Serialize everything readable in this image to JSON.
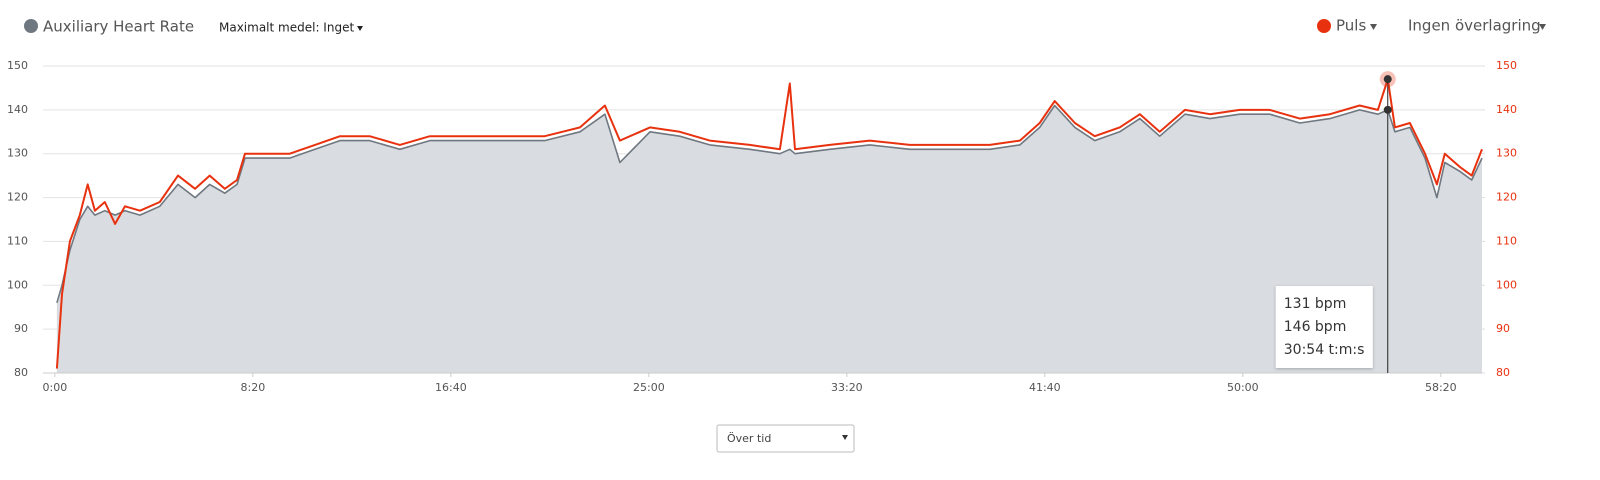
{
  "chart_data": {
    "type": "line",
    "controls": {
      "average": "Maximalt medel: Inget",
      "overlay": "Ingen överlagring",
      "mode": "Över tid"
    },
    "x": [
      5,
      18,
      38,
      63,
      83,
      101,
      126,
      152,
      177,
      215,
      265,
      311,
      354,
      391,
      429,
      460,
      480,
      530,
      593,
      657,
      720,
      795,
      871,
      947,
      1048,
      1149,
      1237,
      1326,
      1389,
      1427,
      1503,
      1578,
      1654,
      1755,
      1831,
      1856,
      1869,
      1957,
      2058,
      2159,
      2260,
      2361,
      2437,
      2487,
      2525,
      2576,
      2626,
      2689,
      2740,
      2790,
      2854,
      2917,
      2992,
      3068,
      3144,
      3220,
      3295,
      3341,
      3366,
      3384,
      3422,
      3460,
      3490,
      3510,
      3548,
      3578,
      3604
    ],
    "series": [
      {
        "name": "Auxiliary Heart Rate",
        "color": "#6f7780",
        "fill": "#d9dde1",
        "values": [
          96,
          100,
          108,
          115,
          118,
          116,
          117,
          116,
          117,
          116,
          118,
          123,
          120,
          123,
          121,
          123,
          129,
          129,
          129,
          131,
          133,
          133,
          131,
          133,
          133,
          133,
          133,
          135,
          139,
          128,
          135,
          134,
          132,
          131,
          130,
          131,
          130,
          131,
          132,
          131,
          131,
          131,
          132,
          136,
          141,
          136,
          133,
          135,
          138,
          134,
          139,
          138,
          139,
          139,
          137,
          138,
          140,
          139,
          140,
          135,
          136,
          129,
          120,
          128,
          126,
          124,
          129
        ]
      },
      {
        "name": "Puls",
        "color": "#e8320f",
        "axis": "y2",
        "values": [
          81,
          98,
          110,
          116,
          123,
          117,
          119,
          114,
          118,
          117,
          119,
          125,
          122,
          125,
          122,
          124,
          130,
          130,
          130,
          132,
          134,
          134,
          132,
          134,
          134,
          134,
          134,
          136,
          141,
          133,
          136,
          135,
          133,
          132,
          131,
          146,
          131,
          132,
          133,
          132,
          132,
          132,
          133,
          137,
          142,
          137,
          134,
          136,
          139,
          135,
          140,
          139,
          140,
          140,
          138,
          139,
          141,
          140,
          147,
          136,
          137,
          130,
          123,
          130,
          127,
          125,
          131
        ]
      }
    ],
    "xlim": [
      -30,
      3604
    ],
    "xticks": [
      {
        "value": 0,
        "label": "0:00"
      },
      {
        "value": 500,
        "label": "8:20"
      },
      {
        "value": 1000,
        "label": "16:40"
      },
      {
        "value": 1500,
        "label": "25:00"
      },
      {
        "value": 2000,
        "label": "33:20"
      },
      {
        "value": 2500,
        "label": "41:40"
      },
      {
        "value": 3000,
        "label": "50:00"
      },
      {
        "value": 3500,
        "label": "58:20"
      }
    ],
    "ylim": [
      80,
      150
    ],
    "yticks": [
      80,
      90,
      100,
      110,
      120,
      130,
      140,
      150
    ],
    "y2lim": [
      80,
      150
    ],
    "y2ticks": [
      80,
      90,
      100,
      110,
      120,
      130,
      140,
      150
    ],
    "grid": true,
    "tooltip": {
      "lines": [
        "131 bpm",
        "146 bpm",
        "30:54 t:m:s"
      ]
    }
  }
}
